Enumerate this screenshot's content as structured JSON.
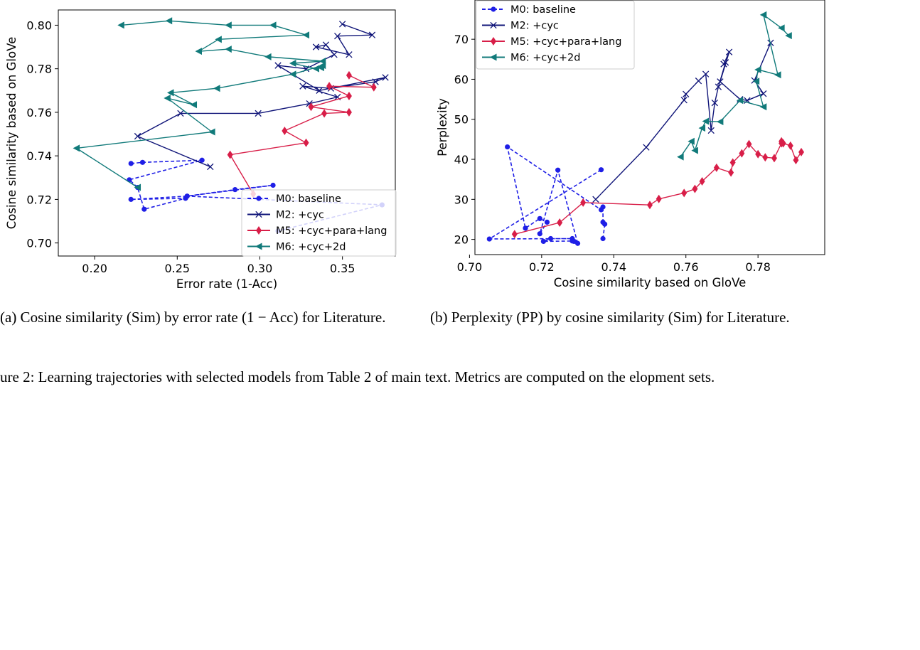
{
  "captions": {
    "a": "(a) Cosine similarity (Sim) by error rate (1 − Acc) for Literature.",
    "b": "(b) Perplexity (PP) by cosine similarity (Sim) for Literature.",
    "figure": "ure 2: Learning trajectories with selected models from Table 2 of main text. Metrics are computed on the elopment sets."
  },
  "chart_data": [
    {
      "type": "line",
      "title": "",
      "xlabel": "Error rate (1-Acc)",
      "ylabel": "Cosine similarity based on GloVe",
      "xlim": [
        0.178,
        0.382
      ],
      "ylim": [
        0.694,
        0.807
      ],
      "xticks": [
        "0.20",
        "0.25",
        "0.30",
        "0.35"
      ],
      "yticks": [
        "0.70",
        "0.72",
        "0.74",
        "0.76",
        "0.78",
        "0.80"
      ],
      "grid": false,
      "legend_position": "lower-right",
      "series": [
        {
          "name": "M0: baseline",
          "color": "#1f1fe6",
          "marker": "circle",
          "dash": "dashed",
          "points": [
            [
              0.222,
              0.7365
            ],
            [
              0.229,
              0.737
            ],
            [
              0.265,
              0.738
            ],
            [
              0.221,
              0.729
            ],
            [
              0.226,
              0.7255
            ],
            [
              0.23,
              0.7155
            ],
            [
              0.255,
              0.7205
            ],
            [
              0.222,
              0.72
            ],
            [
              0.256,
              0.7215
            ],
            [
              0.285,
              0.7245
            ],
            [
              0.308,
              0.7265
            ],
            [
              0.256,
              0.7215
            ],
            [
              0.374,
              0.7175
            ],
            [
              0.311,
              0.7055
            ]
          ]
        },
        {
          "name": "M2: +cyc",
          "color": "#0f1478",
          "marker": "x",
          "dash": "solid",
          "points": [
            [
              0.27,
              0.735
            ],
            [
              0.226,
              0.749
            ],
            [
              0.252,
              0.7595
            ],
            [
              0.299,
              0.7595
            ],
            [
              0.33,
              0.764
            ],
            [
              0.347,
              0.767
            ],
            [
              0.326,
              0.772
            ],
            [
              0.343,
              0.771
            ],
            [
              0.37,
              0.774
            ],
            [
              0.376,
              0.776
            ],
            [
              0.336,
              0.77
            ],
            [
              0.311,
              0.7815
            ],
            [
              0.328,
              0.78
            ],
            [
              0.345,
              0.7865
            ],
            [
              0.34,
              0.791
            ],
            [
              0.334,
              0.79
            ],
            [
              0.354,
              0.7865
            ],
            [
              0.347,
              0.795
            ],
            [
              0.368,
              0.7955
            ],
            [
              0.35,
              0.8005
            ]
          ]
        },
        {
          "name": "M5: +cyc+para+lang",
          "color": "#d81e48",
          "marker": "diamond",
          "dash": "solid",
          "points": [
            [
              0.296,
              0.7225
            ],
            [
              0.282,
              0.7405
            ],
            [
              0.328,
              0.746
            ],
            [
              0.315,
              0.7515
            ],
            [
              0.339,
              0.7595
            ],
            [
              0.354,
              0.76
            ],
            [
              0.331,
              0.7625
            ],
            [
              0.354,
              0.7675
            ],
            [
              0.342,
              0.772
            ],
            [
              0.369,
              0.7715
            ],
            [
              0.354,
              0.777
            ]
          ]
        },
        {
          "name": "M6: +cyc+2d",
          "color": "#117a7a",
          "marker": "triangle-left",
          "dash": "solid",
          "points": [
            [
              0.226,
              0.7255
            ],
            [
              0.189,
              0.7435
            ],
            [
              0.271,
              0.751
            ],
            [
              0.244,
              0.7665
            ],
            [
              0.26,
              0.7635
            ],
            [
              0.246,
              0.769
            ],
            [
              0.274,
              0.771
            ],
            [
              0.32,
              0.7775
            ],
            [
              0.338,
              0.7815
            ],
            [
              0.337,
              0.7805
            ],
            [
              0.334,
              0.78
            ],
            [
              0.32,
              0.7825
            ],
            [
              0.338,
              0.7835
            ],
            [
              0.305,
              0.7855
            ],
            [
              0.281,
              0.789
            ],
            [
              0.263,
              0.788
            ],
            [
              0.275,
              0.7935
            ],
            [
              0.328,
              0.7955
            ],
            [
              0.308,
              0.8
            ],
            [
              0.281,
              0.8
            ],
            [
              0.245,
              0.802
            ],
            [
              0.216,
              0.8
            ]
          ]
        }
      ]
    },
    {
      "type": "line",
      "title": "",
      "xlabel": "Cosine similarity based on GloVe",
      "ylabel": "Perplexity",
      "xlim": [
        0.7015,
        0.7985
      ],
      "ylim": [
        16.2,
        79.8
      ],
      "xticks": [
        "0.70",
        "0.72",
        "0.74",
        "0.76",
        "0.78"
      ],
      "yticks": [
        "20",
        "30",
        "40",
        "50",
        "60",
        "70"
      ],
      "grid": false,
      "legend_position": "upper-left",
      "series": [
        {
          "name": "M0: baseline",
          "color": "#1f1fe6",
          "marker": "circle",
          "dash": "dashed",
          "points": [
            [
              0.7365,
              37.4
            ],
            [
              0.7055,
              20.1
            ],
            [
              0.7285,
              20.2
            ],
            [
              0.7225,
              20.2
            ],
            [
              0.7205,
              19.5
            ],
            [
              0.7285,
              19.6
            ],
            [
              0.729,
              19.5
            ],
            [
              0.73,
              19.0
            ],
            [
              0.7245,
              37.3
            ],
            [
              0.7195,
              21.4
            ],
            [
              0.7215,
              24.3
            ],
            [
              0.7195,
              25.2
            ],
            [
              0.7155,
              22.8
            ],
            [
              0.7105,
              43.1
            ],
            [
              0.7365,
              27.4
            ],
            [
              0.737,
              28.1
            ],
            [
              0.737,
              24.3
            ],
            [
              0.7375,
              23.8
            ],
            [
              0.737,
              20.2
            ]
          ]
        },
        {
          "name": "M2: +cyc",
          "color": "#0f1478",
          "marker": "x",
          "dash": "solid",
          "points": [
            [
              0.735,
              30.0
            ],
            [
              0.749,
              43.0
            ],
            [
              0.7595,
              54.8
            ],
            [
              0.76,
              56.3
            ],
            [
              0.7635,
              59.6
            ],
            [
              0.7655,
              61.3
            ],
            [
              0.767,
              47.2
            ],
            [
              0.768,
              54.1
            ],
            [
              0.769,
              58.1
            ],
            [
              0.771,
              64.2
            ],
            [
              0.7705,
              63.8
            ],
            [
              0.772,
              66.8
            ],
            [
              0.7695,
              59.4
            ],
            [
              0.775,
              55.0
            ],
            [
              0.777,
              54.7
            ],
            [
              0.7815,
              56.4
            ],
            [
              0.779,
              59.7
            ],
            [
              0.7835,
              69.1
            ]
          ]
        },
        {
          "name": "M5: +cyc+para+lang",
          "color": "#d81e48",
          "marker": "diamond",
          "dash": "solid",
          "points": [
            [
              0.7125,
              21.3
            ],
            [
              0.725,
              24.2
            ],
            [
              0.7315,
              29.2
            ],
            [
              0.75,
              28.6
            ],
            [
              0.7525,
              30.1
            ],
            [
              0.7595,
              31.6
            ],
            [
              0.7625,
              32.6
            ],
            [
              0.7645,
              34.5
            ],
            [
              0.7685,
              37.9
            ],
            [
              0.7725,
              36.7
            ],
            [
              0.773,
              39.2
            ],
            [
              0.7755,
              41.5
            ],
            [
              0.7775,
              43.8
            ],
            [
              0.78,
              41.3
            ],
            [
              0.782,
              40.5
            ],
            [
              0.7845,
              40.3
            ],
            [
              0.7865,
              44.0
            ],
            [
              0.7865,
              44.5
            ],
            [
              0.787,
              44.0
            ],
            [
              0.789,
              43.4
            ],
            [
              0.7905,
              39.8
            ],
            [
              0.792,
              41.8
            ]
          ]
        },
        {
          "name": "M6: +cyc+2d",
          "color": "#117a7a",
          "marker": "triangle-left",
          "dash": "solid",
          "points": [
            [
              0.7585,
              40.6
            ],
            [
              0.7615,
              44.5
            ],
            [
              0.7625,
              42.2
            ],
            [
              0.7645,
              47.8
            ],
            [
              0.7655,
              49.5
            ],
            [
              0.7695,
              49.4
            ],
            [
              0.775,
              54.7
            ],
            [
              0.7815,
              53.1
            ],
            [
              0.7795,
              59.5
            ],
            [
              0.78,
              62.4
            ],
            [
              0.7855,
              61.1
            ],
            [
              0.7815,
              76.1
            ],
            [
              0.7865,
              72.8
            ],
            [
              0.7885,
              70.9
            ]
          ]
        }
      ]
    }
  ]
}
